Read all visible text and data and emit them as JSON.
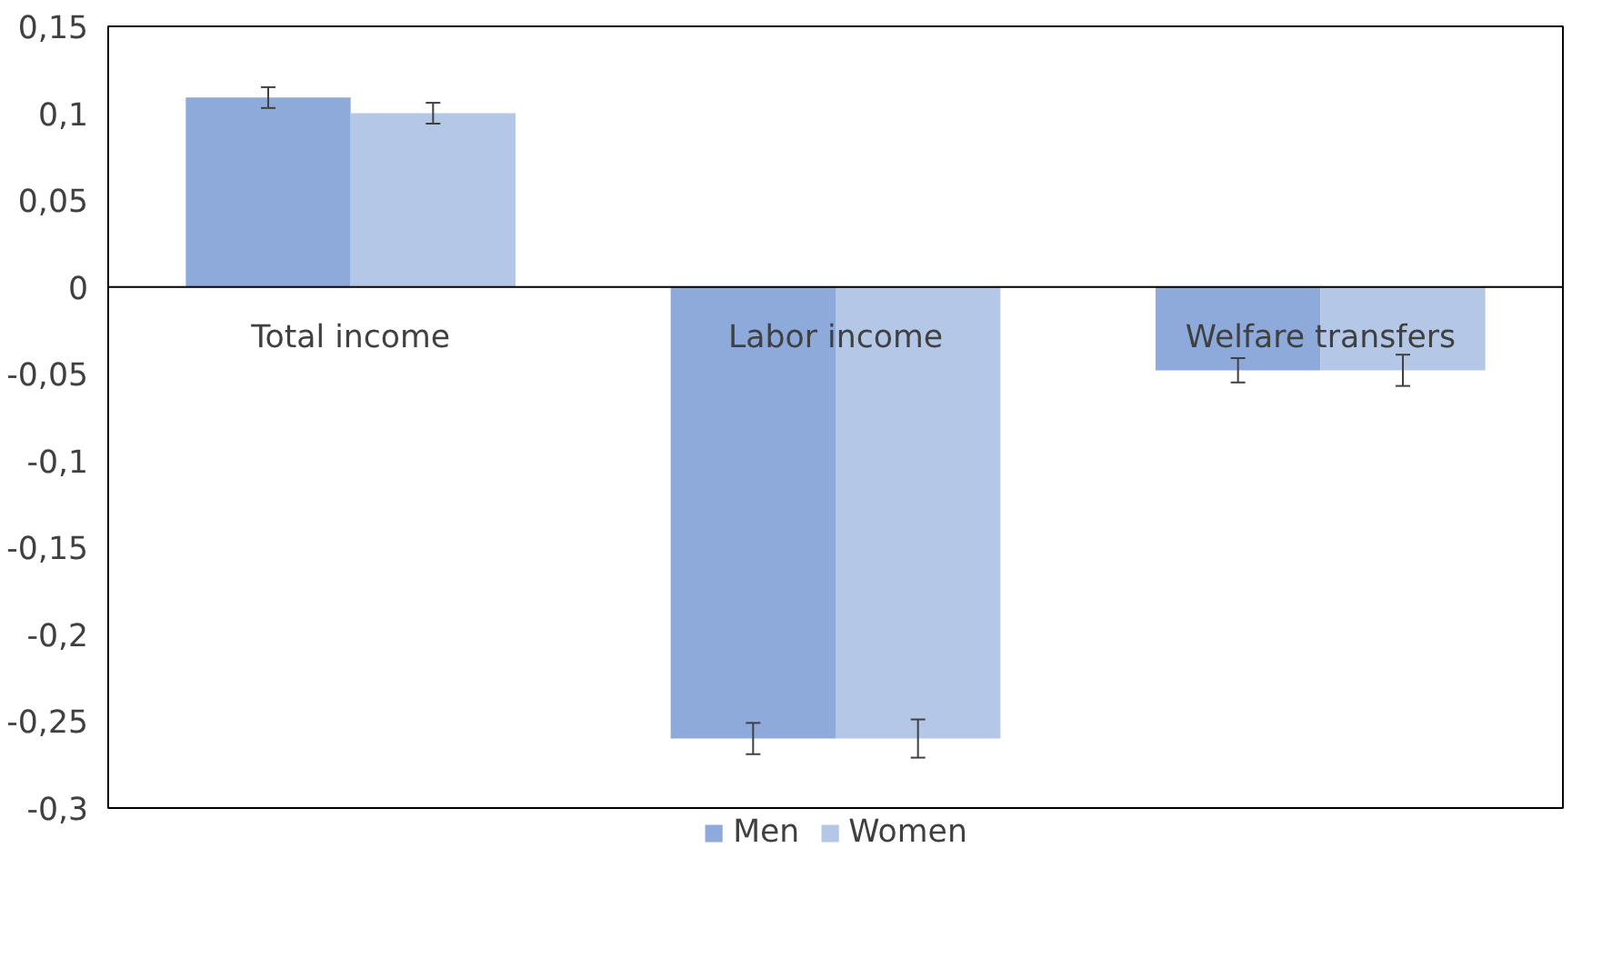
{
  "chart_data": {
    "type": "bar",
    "categories": [
      "Total income",
      "Labor income",
      "Welfare transfers"
    ],
    "series": [
      {
        "name": "Men",
        "color": "#8eaadb",
        "values": [
          0.109,
          -0.26,
          -0.048
        ],
        "errors": [
          0.006,
          0.009,
          0.007
        ]
      },
      {
        "name": "Women",
        "color": "#b4c7e7",
        "values": [
          0.1,
          -0.26,
          -0.048
        ],
        "errors": [
          0.006,
          0.011,
          0.009
        ]
      }
    ],
    "ylim": [
      -0.3,
      0.15
    ],
    "yticks": [
      {
        "value": -0.3,
        "label": "-0,3"
      },
      {
        "value": -0.25,
        "label": "-0,25"
      },
      {
        "value": -0.2,
        "label": "-0,2"
      },
      {
        "value": -0.15,
        "label": "-0,15"
      },
      {
        "value": -0.1,
        "label": "-0,1"
      },
      {
        "value": -0.05,
        "label": "-0,05"
      },
      {
        "value": 0,
        "label": "0"
      },
      {
        "value": 0.05,
        "label": "0,05"
      },
      {
        "value": 0.1,
        "label": "0,1"
      },
      {
        "value": 0.15,
        "label": "0,15"
      }
    ],
    "grid": false,
    "legend": "bottom"
  }
}
